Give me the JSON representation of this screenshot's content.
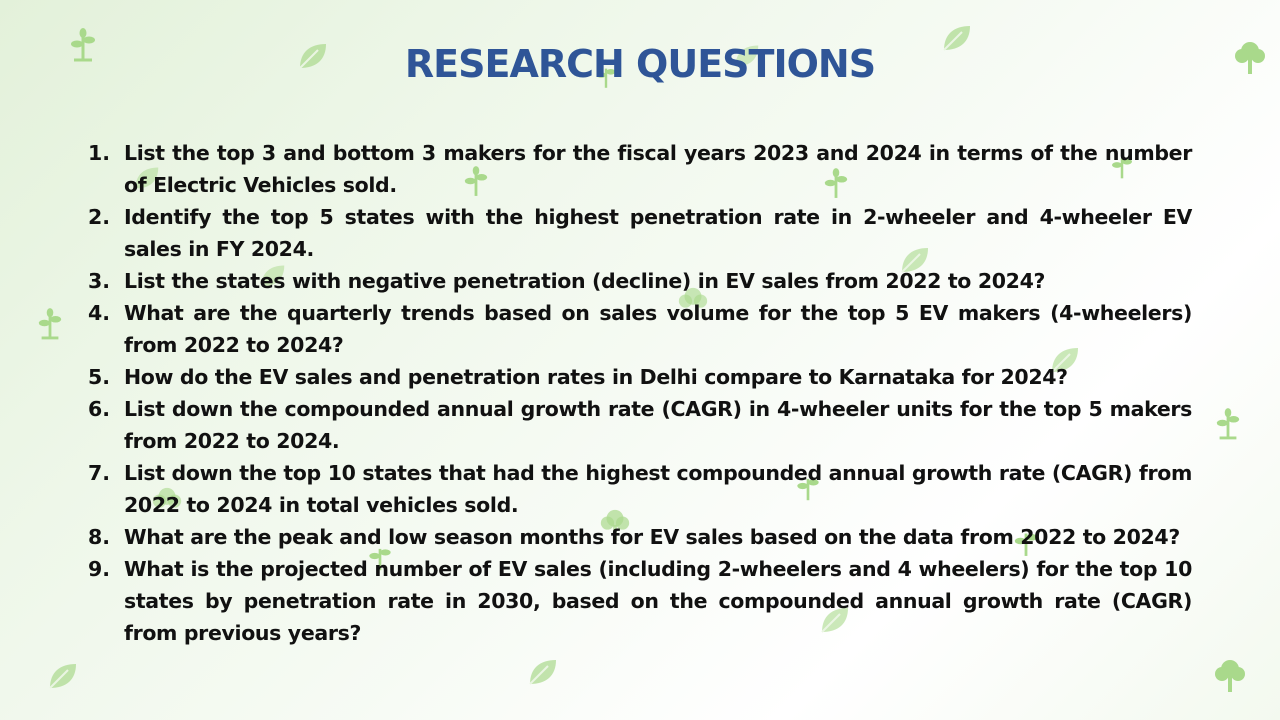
{
  "slide": {
    "title": "RESEARCH QUESTIONS",
    "questions": [
      {
        "number": "1.",
        "text": "List the top 3 and bottom 3 makers for the fiscal years 2023 and 2024 in terms of the number of Electric Vehicles sold."
      },
      {
        "number": "2.",
        "text": "Identify the top 5 states with the highest penetration rate in 2-wheeler and 4-wheeler EV sales in FY 2024."
      },
      {
        "number": "3.",
        "text": "List the states with negative penetration (decline) in EV sales from 2022 to 2024?"
      },
      {
        "number": "4.",
        "text": "What are the quarterly trends based on sales volume for the top 5 EV makers (4-wheelers) from 2022 to 2024?"
      },
      {
        "number": "5.",
        "text": "How do the EV sales and penetration rates in Delhi compare to Karnataka for 2024?"
      },
      {
        "number": "6.",
        "text": "List down the compounded annual growth rate (CAGR) in 4-wheeler units for the top 5 makers from 2022 to 2024."
      },
      {
        "number": "7.",
        "text": "List down the top 10 states that had the highest compounded annual growth rate (CAGR) from 2022 to 2024 in total vehicles sold."
      },
      {
        "number": "8.",
        "text": "What are the peak and low season months for EV sales based on the data from 2022 to 2024?"
      },
      {
        "number": "9.",
        "text": "What is the projected number of EV sales (including 2-wheelers and 4 wheelers) for the top 10 states by penetration rate in 2030, based on the compounded annual growth rate (CAGR) from previous years?"
      }
    ]
  },
  "decor": {
    "leaf_color": "#a9d98b",
    "icons": [
      "leaf-icon",
      "sprout-icon",
      "tree-icon"
    ]
  }
}
